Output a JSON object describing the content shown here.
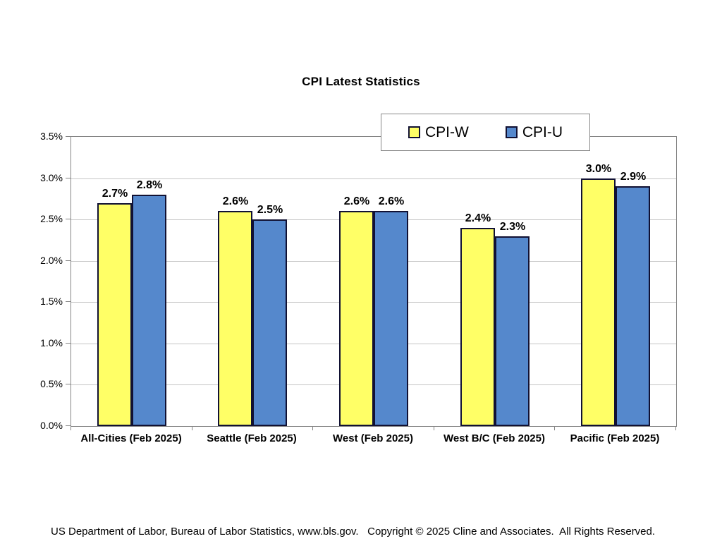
{
  "chart_data": {
    "type": "bar",
    "title": "CPI Latest Statistics",
    "categories": [
      "All-Cities (Feb 2025)",
      "Seattle (Feb 2025)",
      "West (Feb 2025)",
      "West B/C (Feb 2025)",
      "Pacific (Feb 2025)"
    ],
    "series": [
      {
        "name": "CPI-W",
        "color": "#FFFF66",
        "values": [
          2.7,
          2.6,
          2.6,
          2.4,
          3.0
        ]
      },
      {
        "name": "CPI-U",
        "color": "#5588CC",
        "values": [
          2.8,
          2.5,
          2.6,
          2.3,
          2.9
        ]
      }
    ],
    "value_suffix": "%",
    "data_labels": true,
    "ylim": [
      0,
      3.5
    ],
    "ytick_step": 0.5,
    "ytick_labels": [
      "0.0%",
      "0.5%",
      "1.0%",
      "1.5%",
      "2.0%",
      "2.5%",
      "3.0%",
      "3.5%"
    ],
    "grid": true,
    "legend_position": "top-right",
    "colors": {
      "bar_border": "#111133",
      "gridline": "#c6c6c6",
      "plot_border": "#858585",
      "text": "#000000",
      "background": "#ffffff"
    }
  },
  "footer": {
    "text": "US Department of Labor, Bureau of Labor Statistics, www.bls.gov.   Copyright © 2025 Cline and Associates.  All Rights Reserved."
  }
}
